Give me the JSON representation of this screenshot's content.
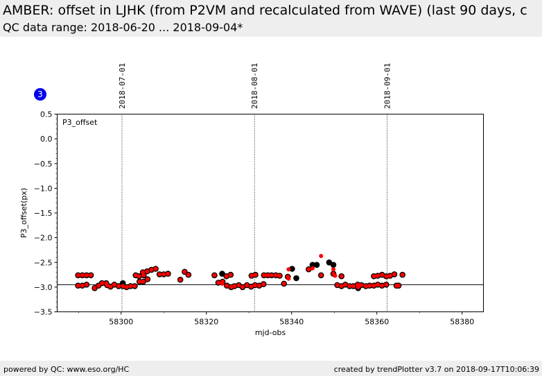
{
  "header": {
    "title": "AMBER: offset in LJHK (from P2VM and recalculated from WAVE) (last 90 days, c",
    "subtitle": "QC data range: 2018-06-20 ... 2018-09-04*"
  },
  "badge": "3",
  "footer": {
    "left": "powered by QC: www.eso.org/HC",
    "right": "created by trendPlotter v3.7 on 2018-09-17T10:06:39"
  },
  "chart_data": {
    "type": "scatter",
    "panel_label": "P3_offset",
    "xlabel": "mjd-obs",
    "ylabel": "P3_offset(px)",
    "xlim": [
      58285,
      58385
    ],
    "ylim": [
      -3.5,
      0.5
    ],
    "x_ticks": [
      58300,
      58320,
      58340,
      58360,
      58380
    ],
    "y_ticks": [
      0.5,
      0.0,
      -0.5,
      -1.0,
      -1.5,
      -2.0,
      -2.5,
      -3.0,
      -3.5
    ],
    "y_tick_labels": [
      "0.5",
      "0.0",
      "−0.5",
      "−1.0",
      "−1.5",
      "−2.0",
      "−2.5",
      "−3.0",
      "−3.5"
    ],
    "reference_line": -2.95,
    "date_markers": [
      {
        "label": "2018-07-01",
        "x": 58300.2
      },
      {
        "label": "2018-08-01",
        "x": 58331.3
      },
      {
        "label": "2018-09-01",
        "x": 58362.4
      }
    ],
    "series": [
      {
        "marker_color": "#000000",
        "points": [
          [
            58289.9,
            -2.76
          ],
          [
            58290.9,
            -2.76
          ],
          [
            58291.9,
            -2.76
          ],
          [
            58289.9,
            -2.97
          ],
          [
            58290.9,
            -2.97
          ],
          [
            58291.9,
            -2.95
          ],
          [
            58292.9,
            -2.76
          ],
          [
            58293.8,
            -3.02
          ],
          [
            58294.7,
            -2.97
          ],
          [
            58295.5,
            -2.92
          ],
          [
            58296.5,
            -2.92
          ],
          [
            58296.7,
            -2.96
          ],
          [
            58297.5,
            -2.99
          ],
          [
            58298.4,
            -2.95
          ],
          [
            58299.4,
            -2.98
          ],
          [
            58300.4,
            -2.92
          ],
          [
            58300.4,
            -2.98
          ],
          [
            58301.3,
            -3.0
          ],
          [
            58302.2,
            -2.98
          ],
          [
            58303.2,
            -2.98
          ],
          [
            58303.4,
            -2.76
          ],
          [
            58304.2,
            -2.78
          ],
          [
            58304.3,
            -2.89
          ],
          [
            58305.1,
            -2.7
          ],
          [
            58305.2,
            -2.89
          ],
          [
            58305.3,
            -2.76
          ],
          [
            58306.1,
            -2.68
          ],
          [
            58306.2,
            -2.84
          ],
          [
            58307.1,
            -2.65
          ],
          [
            58308.1,
            -2.63
          ],
          [
            58309.0,
            -2.74
          ],
          [
            58310.0,
            -2.74
          ],
          [
            58311.0,
            -2.73
          ],
          [
            58313.9,
            -2.85
          ],
          [
            58314.9,
            -2.69
          ],
          [
            58315.8,
            -2.75
          ],
          [
            58321.9,
            -2.76
          ],
          [
            58322.8,
            -2.91
          ],
          [
            58323.7,
            -2.73
          ],
          [
            58323.8,
            -2.89
          ],
          [
            58324.7,
            -2.78
          ],
          [
            58324.8,
            -2.97
          ],
          [
            58325.7,
            -2.75
          ],
          [
            58325.8,
            -3.0
          ],
          [
            58326.6,
            -2.98
          ],
          [
            58327.6,
            -2.96
          ],
          [
            58328.5,
            -3.0
          ],
          [
            58329.5,
            -2.96
          ],
          [
            58330.5,
            -2.99
          ],
          [
            58330.6,
            -2.77
          ],
          [
            58331.4,
            -2.96
          ],
          [
            58331.5,
            -2.75
          ],
          [
            58332.4,
            -2.97
          ],
          [
            58333.4,
            -2.94
          ],
          [
            58333.5,
            -2.76
          ],
          [
            58334.4,
            -2.76
          ],
          [
            58335.3,
            -2.76
          ],
          [
            58336.3,
            -2.76
          ],
          [
            58337.2,
            -2.77
          ],
          [
            58338.2,
            -2.93
          ],
          [
            58339.1,
            -2.79
          ],
          [
            58340.1,
            -2.63
          ],
          [
            58341.1,
            -2.82
          ],
          [
            58344.0,
            -2.64
          ],
          [
            58344.9,
            -2.55
          ],
          [
            58345.9,
            -2.55
          ],
          [
            58346.9,
            -2.76
          ],
          [
            58348.8,
            -2.5
          ],
          [
            58349.8,
            -2.55
          ],
          [
            58349.8,
            -2.73
          ],
          [
            58350.7,
            -2.96
          ],
          [
            58351.7,
            -2.78
          ],
          [
            58351.7,
            -2.98
          ],
          [
            58352.6,
            -2.95
          ],
          [
            58353.6,
            -2.98
          ],
          [
            58354.5,
            -2.98
          ],
          [
            58355.5,
            -2.95
          ],
          [
            58355.6,
            -3.02
          ],
          [
            58356.4,
            -2.96
          ],
          [
            58357.4,
            -2.98
          ],
          [
            58358.3,
            -2.97
          ],
          [
            58359.3,
            -2.97
          ],
          [
            58359.3,
            -2.78
          ],
          [
            58360.2,
            -2.77
          ],
          [
            58360.2,
            -2.95
          ],
          [
            58361.2,
            -2.75
          ],
          [
            58361.2,
            -2.97
          ],
          [
            58362.2,
            -2.78
          ],
          [
            58362.2,
            -2.95
          ],
          [
            58363.1,
            -2.77
          ],
          [
            58364.1,
            -2.74
          ],
          [
            58364.6,
            -2.97
          ],
          [
            58365.1,
            -2.97
          ],
          [
            58366.0,
            -2.75
          ]
        ]
      },
      {
        "marker_color": "#ff0000",
        "points": [
          [
            58289.9,
            -2.76
          ],
          [
            58290.9,
            -2.76
          ],
          [
            58291.9,
            -2.76
          ],
          [
            58289.9,
            -2.97
          ],
          [
            58290.9,
            -2.97
          ],
          [
            58291.9,
            -2.95
          ],
          [
            58292.9,
            -2.76
          ],
          [
            58293.8,
            -3.02
          ],
          [
            58294.7,
            -2.97
          ],
          [
            58295.5,
            -2.92
          ],
          [
            58296.5,
            -2.92
          ],
          [
            58296.7,
            -2.96
          ],
          [
            58297.5,
            -2.99
          ],
          [
            58298.4,
            -2.95
          ],
          [
            58299.4,
            -2.98
          ],
          [
            58300.4,
            -2.98
          ],
          [
            58301.3,
            -3.0
          ],
          [
            58302.2,
            -2.98
          ],
          [
            58303.2,
            -2.98
          ],
          [
            58303.4,
            -2.76
          ],
          [
            58304.2,
            -2.78
          ],
          [
            58304.3,
            -2.89
          ],
          [
            58305.1,
            -2.7
          ],
          [
            58305.2,
            -2.89
          ],
          [
            58305.3,
            -2.76
          ],
          [
            58306.1,
            -2.68
          ],
          [
            58306.2,
            -2.84
          ],
          [
            58307.1,
            -2.65
          ],
          [
            58308.1,
            -2.63
          ],
          [
            58309.0,
            -2.74
          ],
          [
            58310.0,
            -2.74
          ],
          [
            58311.0,
            -2.73
          ],
          [
            58313.9,
            -2.85
          ],
          [
            58314.9,
            -2.69
          ],
          [
            58315.8,
            -2.75
          ],
          [
            58321.9,
            -2.76
          ],
          [
            58322.8,
            -2.91
          ],
          [
            58323.7,
            -2.93
          ],
          [
            58323.8,
            -2.89
          ],
          [
            58324.7,
            -2.78
          ],
          [
            58324.8,
            -2.97
          ],
          [
            58325.7,
            -2.75
          ],
          [
            58325.8,
            -3.0
          ],
          [
            58326.6,
            -2.98
          ],
          [
            58327.6,
            -2.96
          ],
          [
            58328.5,
            -3.0
          ],
          [
            58329.5,
            -2.96
          ],
          [
            58330.5,
            -2.99
          ],
          [
            58330.6,
            -2.77
          ],
          [
            58331.4,
            -2.96
          ],
          [
            58331.5,
            -2.75
          ],
          [
            58332.4,
            -2.97
          ],
          [
            58333.4,
            -2.94
          ],
          [
            58333.5,
            -2.76
          ],
          [
            58334.4,
            -2.76
          ],
          [
            58335.3,
            -2.76
          ],
          [
            58336.3,
            -2.76
          ],
          [
            58337.2,
            -2.77
          ],
          [
            58338.2,
            -2.93
          ],
          [
            58339.1,
            -2.79
          ],
          [
            58339.3,
            -2.64
          ],
          [
            58339.3,
            -2.83
          ],
          [
            58344.0,
            -2.64
          ],
          [
            58344.9,
            -2.62
          ],
          [
            58346.9,
            -2.76
          ],
          [
            58346.9,
            -2.37
          ],
          [
            58349.8,
            -2.64
          ],
          [
            58349.8,
            -2.73
          ],
          [
            58350.2,
            -2.77
          ],
          [
            58350.7,
            -2.96
          ],
          [
            58351.7,
            -2.78
          ],
          [
            58351.7,
            -2.98
          ],
          [
            58352.6,
            -2.95
          ],
          [
            58353.6,
            -2.98
          ],
          [
            58354.5,
            -2.98
          ],
          [
            58355.5,
            -2.95
          ],
          [
            58355.6,
            -3.0
          ],
          [
            58356.4,
            -2.96
          ],
          [
            58357.4,
            -2.98
          ],
          [
            58358.3,
            -2.97
          ],
          [
            58359.3,
            -2.97
          ],
          [
            58359.3,
            -2.78
          ],
          [
            58360.2,
            -2.77
          ],
          [
            58360.2,
            -2.95
          ],
          [
            58361.2,
            -2.75
          ],
          [
            58361.2,
            -2.97
          ],
          [
            58362.2,
            -2.78
          ],
          [
            58362.2,
            -2.95
          ],
          [
            58363.1,
            -2.77
          ],
          [
            58364.1,
            -2.74
          ],
          [
            58364.6,
            -2.97
          ],
          [
            58365.1,
            -2.97
          ],
          [
            58366.0,
            -2.75
          ]
        ]
      }
    ]
  }
}
